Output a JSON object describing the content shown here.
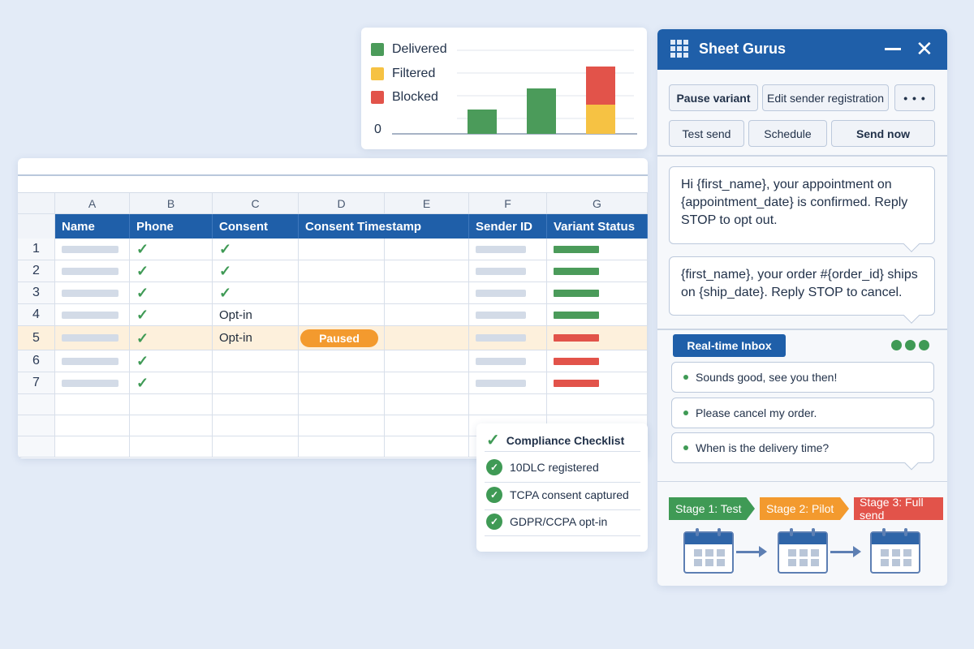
{
  "chart": {
    "legend": [
      {
        "label": "Delivered",
        "color": "#4b9b5a"
      },
      {
        "label": "Filtered",
        "color": "#f6c243"
      },
      {
        "label": "Blocked",
        "color": "#e2534a"
      }
    ],
    "zero_label": "0"
  },
  "chart_data": {
    "type": "bar",
    "stacked": true,
    "categories": [
      "",
      "",
      ""
    ],
    "series": [
      {
        "name": "Delivered",
        "values": [
          30,
          56,
          0
        ]
      },
      {
        "name": "Filtered",
        "values": [
          0,
          0,
          36
        ]
      },
      {
        "name": "Blocked",
        "values": [
          0,
          0,
          47
        ]
      }
    ],
    "ylim": [
      0,
      85
    ],
    "ytick": "0",
    "grid": true,
    "legend_position": "left"
  },
  "sheet": {
    "column_letters": [
      "A",
      "B",
      "C",
      "D",
      "E",
      "F",
      "G"
    ],
    "headers": [
      "Name",
      "Phone",
      "Consent",
      "Consent Timestamp",
      "",
      "Sender ID",
      "Variant Status"
    ],
    "rows": [
      {
        "num": "1",
        "consent": "✓",
        "status": "green"
      },
      {
        "num": "2",
        "consent": "✓",
        "status": "green"
      },
      {
        "num": "3",
        "consent": "✓",
        "status": "green"
      },
      {
        "num": "4",
        "consent": "Opt-in",
        "status": "green"
      },
      {
        "num": "5",
        "consent": "Opt-in",
        "timestamp": "Paused",
        "status": "red"
      },
      {
        "num": "6",
        "consent": "",
        "status": "red"
      },
      {
        "num": "7",
        "consent": "",
        "status": "red"
      }
    ],
    "status_colors": {
      "green": "#4b9b5a",
      "red": "#e2534a"
    }
  },
  "checklist": {
    "title": "Compliance Checklist",
    "items": [
      "10DLC registered",
      "TCPA consent captured",
      "GDPR/CCPA opt-in"
    ]
  },
  "panel": {
    "title": "Sheet Gurus",
    "buttons": {
      "pause": "Pause variant",
      "edit": "Edit sender registration",
      "more": "• • •",
      "test": "Test send",
      "schedule": "Schedule",
      "send": "Send now"
    },
    "templates": [
      "Hi {first_name}, your appointment on {appointment_date} is confirmed. Reply STOP to opt out.",
      "{first_name}, your order #{order_id} ships on {ship_date}. Reply STOP to cancel."
    ],
    "inbox_label": "Real-time Inbox",
    "messages": [
      "Sounds good, see you then!",
      "Please cancel my order.",
      "When is the delivery time?"
    ],
    "stages": [
      {
        "label": "Stage 1: Test",
        "color": "#3f9a55"
      },
      {
        "label": "Stage 2: Pilot",
        "color": "#f39a2e"
      },
      {
        "label": "Stage 3: Full send",
        "color": "#e2534a"
      }
    ]
  }
}
